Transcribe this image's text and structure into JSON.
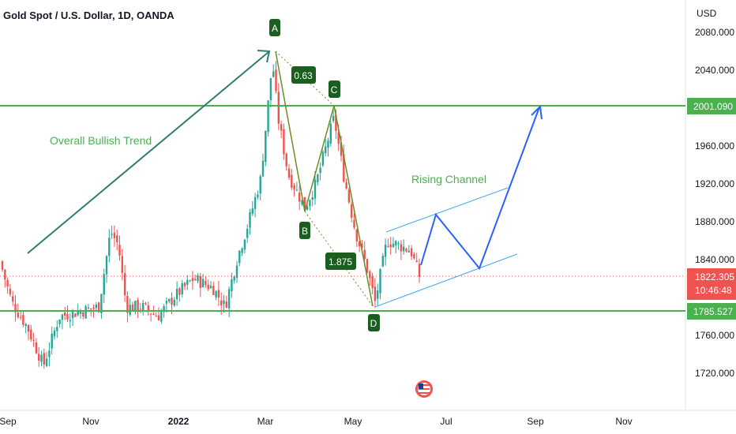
{
  "chart_data": {
    "type": "candlestick",
    "title": "Gold Spot / U.S. Dollar, 1D, OANDA",
    "currency": "USD",
    "y_ticks": [
      "2080.000",
      "2040.000",
      "2001.090",
      "1960.000",
      "1920.000",
      "1880.000",
      "1840.000",
      "1822.305",
      "1785.527",
      "1760.000",
      "1720.000"
    ],
    "y_tick_values": [
      2080,
      2040,
      1960,
      1920,
      1880,
      1840,
      1760,
      1720
    ],
    "x_ticks": [
      "Sep",
      "Nov",
      "2022",
      "Mar",
      "May",
      "Jul",
      "Sep",
      "Nov"
    ],
    "ylim": [
      1690,
      2110
    ],
    "levels": {
      "resistance": {
        "label": "2001.090",
        "value": 2001.09,
        "color": "#4caf50"
      },
      "support": {
        "label": "1785.527",
        "value": 1785.527,
        "color": "#4caf50"
      },
      "last_price": {
        "label": "1822.305",
        "value": 1822.305,
        "countdown": "10:46:48",
        "color": "#ef5350"
      }
    },
    "pattern_points": [
      {
        "name": "A",
        "value": 2070
      },
      {
        "name": "B",
        "value": 1892
      },
      {
        "name": "C",
        "value": 2001
      },
      {
        "name": "D",
        "value": 1788
      }
    ],
    "ratios": [
      "0.63",
      "1.875"
    ],
    "annotations": [
      "Overall Bullish Trend",
      "Rising Channel"
    ],
    "colors": {
      "up": "#26a69a",
      "down": "#ef5350",
      "trend": "#2e7d6e",
      "projection": "#2962ff",
      "channel": "#42a5f5",
      "harmonic": "#6b8e23",
      "label_bg": "#1b5e20",
      "text_green": "#4caf50"
    }
  }
}
